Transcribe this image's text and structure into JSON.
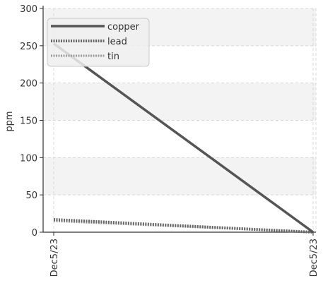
{
  "chart_data": {
    "type": "line",
    "x": [
      "Dec5/23",
      "Dec5/23"
    ],
    "xlabel": "",
    "ylabel": "ppm",
    "ylim": [
      0,
      300
    ],
    "yticks": [
      0,
      50,
      100,
      150,
      200,
      250,
      300
    ],
    "grid": true,
    "legend": "top-left",
    "series": [
      {
        "name": "copper",
        "values": [
          253,
          0
        ],
        "color": "#555555",
        "style": "solid"
      },
      {
        "name": "lead",
        "values": [
          17,
          0
        ],
        "color": "#666666",
        "style": "dotted-heavy"
      },
      {
        "name": "tin",
        "values": [
          15,
          0
        ],
        "color": "#999999",
        "style": "dotted-light"
      }
    ]
  }
}
